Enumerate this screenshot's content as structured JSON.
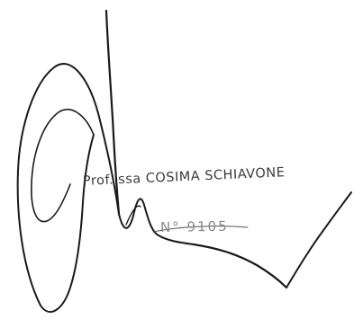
{
  "stamp": {
    "name_line": "Prof. ssa COSIMA SCHIAVONE",
    "number_line": "N° 9105"
  },
  "colors": {
    "background": "#ffffff",
    "ink": "#1a1a1a",
    "stamp_ink": "#2b2b2b",
    "faded_ink": "#8a8a8a"
  }
}
